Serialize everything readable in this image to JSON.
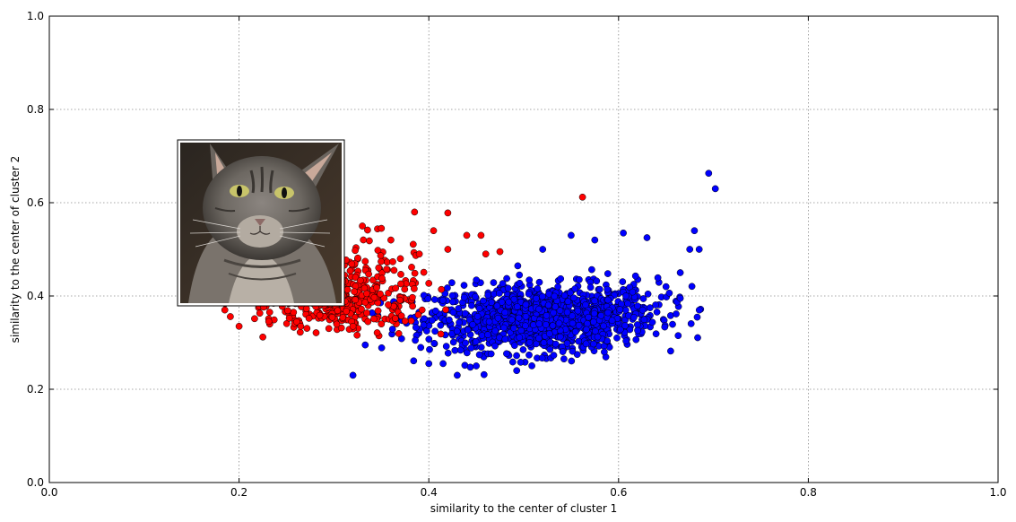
{
  "chart_data": {
    "type": "scatter",
    "xlabel": "similarity to the center of cluster 1",
    "ylabel": "similarity to the center of cluster 2",
    "xlim": [
      0.0,
      1.0
    ],
    "ylim": [
      0.0,
      1.0
    ],
    "xticks": [
      "0.0",
      "0.2",
      "0.4",
      "0.6",
      "0.8",
      "1.0"
    ],
    "yticks": [
      "0.0",
      "0.2",
      "0.4",
      "0.6",
      "0.8",
      "1.0"
    ],
    "grid": true,
    "legend": "none",
    "series": [
      {
        "color": "#ff0000",
        "n_points": 520,
        "cluster": {
          "x_range": [
            0.17,
            0.42
          ],
          "y_range": [
            0.31,
            0.58
          ],
          "center": [
            0.3,
            0.4
          ]
        },
        "points": [
          [
            0.225,
            0.312
          ],
          [
            0.2,
            0.335
          ],
          [
            0.265,
            0.335
          ],
          [
            0.32,
            0.335
          ],
          [
            0.35,
            0.34
          ],
          [
            0.385,
            0.58
          ],
          [
            0.42,
            0.578
          ],
          [
            0.405,
            0.54
          ],
          [
            0.455,
            0.53
          ],
          [
            0.44,
            0.53
          ],
          [
            0.46,
            0.49
          ],
          [
            0.475,
            0.495
          ],
          [
            0.562,
            0.612
          ],
          [
            0.39,
            0.49
          ],
          [
            0.37,
            0.48
          ],
          [
            0.33,
            0.55
          ],
          [
            0.35,
            0.545
          ],
          [
            0.42,
            0.5
          ],
          [
            0.36,
            0.52
          ],
          [
            0.185,
            0.37
          ]
        ]
      },
      {
        "color": "#0000ff",
        "n_points": 1320,
        "cluster": {
          "x_range": [
            0.33,
            0.7
          ],
          "y_range": [
            0.23,
            0.66
          ],
          "center": [
            0.52,
            0.35
          ]
        },
        "points": [
          [
            0.32,
            0.23
          ],
          [
            0.43,
            0.23
          ],
          [
            0.333,
            0.295
          ],
          [
            0.4,
            0.255
          ],
          [
            0.415,
            0.255
          ],
          [
            0.695,
            0.663
          ],
          [
            0.702,
            0.63
          ],
          [
            0.68,
            0.54
          ],
          [
            0.685,
            0.5
          ],
          [
            0.675,
            0.5
          ],
          [
            0.63,
            0.525
          ],
          [
            0.605,
            0.535
          ],
          [
            0.575,
            0.52
          ],
          [
            0.55,
            0.53
          ],
          [
            0.665,
            0.45
          ],
          [
            0.665,
            0.395
          ],
          [
            0.65,
            0.42
          ],
          [
            0.585,
            0.28
          ],
          [
            0.45,
            0.25
          ],
          [
            0.52,
            0.5
          ]
        ]
      }
    ],
    "inset_image": {
      "subject": "tabby cat portrait",
      "anchor_xy": [
        0.137,
        0.385
      ],
      "extent_xy": [
        0.31,
        0.735
      ]
    }
  }
}
